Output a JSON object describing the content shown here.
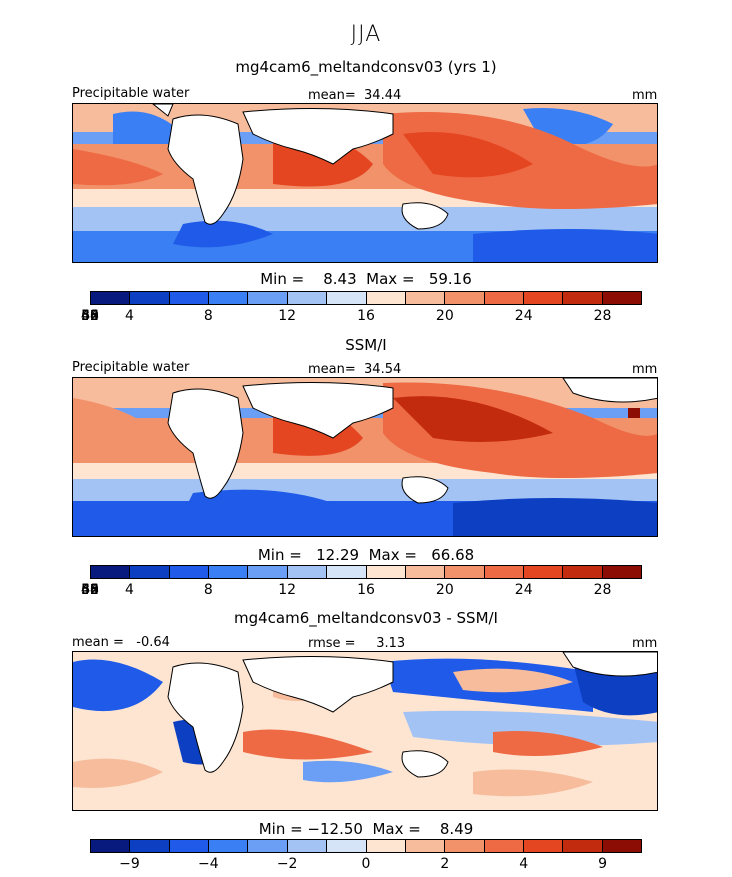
{
  "season": "JJA",
  "colors": [
    "#081a7e",
    "#0c3fc2",
    "#1f5be8",
    "#3a7ff3",
    "#6a9ff5",
    "#a4c3f5",
    "#d6e4f7",
    "#fde5d2",
    "#f7bc9c",
    "#f2926a",
    "#ee6a44",
    "#e54622",
    "#c22b0e",
    "#8c0d03"
  ],
  "panels": [
    {
      "title": "mg4cam6_meltandconsv03 (yrs 1)",
      "left_label": "Precipitable water",
      "center_label": "mean=  34.44",
      "right_label": "mm",
      "minmax": "Min =    8.43  Max =   59.16",
      "ticks": [
        "4",
        "8",
        "12",
        "16",
        "20",
        "24",
        "28",
        "32",
        "36",
        "40",
        "44",
        "48",
        "52",
        "56",
        "60"
      ]
    },
    {
      "title": "SSM/I",
      "left_label": "Precipitable water",
      "center_label": "mean=  34.54",
      "right_label": "mm",
      "minmax": "Min =   12.29  Max =   66.68",
      "ticks": [
        "4",
        "8",
        "12",
        "16",
        "20",
        "24",
        "28",
        "32",
        "36",
        "40",
        "44",
        "48",
        "52",
        "56",
        "60"
      ]
    },
    {
      "title": "mg4cam6_meltandconsv03 - SSM/I",
      "left_label": "mean =   -0.64",
      "center_label": "rmse =     3.13",
      "right_label": "mm",
      "minmax": "Min = −12.50  Max =    8.49",
      "ticks": [
        "−9",
        "−4",
        "−2",
        "0",
        "2",
        "4",
        "9"
      ]
    }
  ]
}
